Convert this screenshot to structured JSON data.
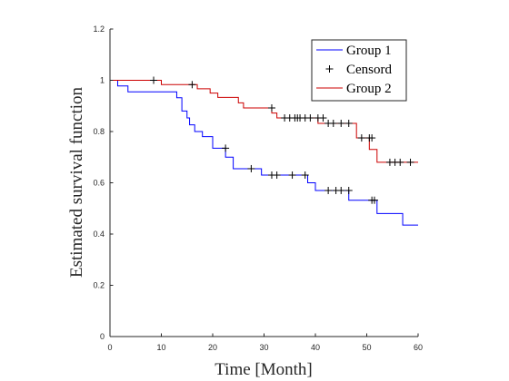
{
  "chart_data": {
    "type": "line",
    "xlabel": "Time [Month]",
    "ylabel": "Estimated survival function",
    "xlim": [
      0,
      60
    ],
    "ylim": [
      0,
      1.2
    ],
    "xticks": [
      0,
      10,
      20,
      30,
      40,
      50,
      60
    ],
    "yticks": [
      0,
      0.2,
      0.4,
      0.6,
      0.8,
      1.0,
      1.2
    ],
    "xtick_labels": [
      "0",
      "10",
      "20",
      "30",
      "40",
      "50",
      "60"
    ],
    "ytick_labels": [
      "0",
      "0.2",
      "0.4",
      "0.6",
      "0.8",
      "1",
      "1.2"
    ],
    "grid": false,
    "legend_position": "top-right",
    "legend": [
      "Group 1",
      "Censord",
      "Group 2"
    ],
    "censor_color": "#000000",
    "series": [
      {
        "name": "Group 1",
        "color": "#0000ff",
        "x": [
          0,
          1.5,
          3.5,
          13,
          14,
          15,
          15.5,
          16.5,
          18,
          20,
          22.5,
          24,
          29.5,
          38.5,
          40,
          46.5,
          52,
          57,
          60
        ],
        "y": [
          1.0,
          0.978,
          0.955,
          0.932,
          0.88,
          0.853,
          0.826,
          0.8,
          0.78,
          0.735,
          0.7,
          0.655,
          0.63,
          0.6,
          0.57,
          0.532,
          0.48,
          0.435,
          0.435
        ],
        "censored": [
          {
            "t": 22.5,
            "s": 0.735
          },
          {
            "t": 27.5,
            "s": 0.655
          },
          {
            "t": 31.5,
            "s": 0.63
          },
          {
            "t": 32.5,
            "s": 0.63
          },
          {
            "t": 35.5,
            "s": 0.63
          },
          {
            "t": 38,
            "s": 0.63
          },
          {
            "t": 42.5,
            "s": 0.57
          },
          {
            "t": 44,
            "s": 0.57
          },
          {
            "t": 45,
            "s": 0.57
          },
          {
            "t": 46.5,
            "s": 0.57
          },
          {
            "t": 51,
            "s": 0.532
          },
          {
            "t": 51.5,
            "s": 0.532
          }
        ]
      },
      {
        "name": "Group 2",
        "color": "#cc0000",
        "x": [
          0,
          10,
          17,
          19.5,
          21,
          25,
          26,
          31.5,
          32.5,
          40.5,
          41.5,
          48,
          50.5,
          52,
          60
        ],
        "y": [
          1.0,
          0.983,
          0.967,
          0.95,
          0.933,
          0.912,
          0.892,
          0.872,
          0.853,
          0.832,
          0.832,
          0.775,
          0.73,
          0.68,
          0.68
        ],
        "censored": [
          {
            "t": 8.5,
            "s": 1.0
          },
          {
            "t": 16,
            "s": 0.983
          },
          {
            "t": 31.5,
            "s": 0.892
          },
          {
            "t": 34,
            "s": 0.853
          },
          {
            "t": 35,
            "s": 0.853
          },
          {
            "t": 36,
            "s": 0.853
          },
          {
            "t": 36.5,
            "s": 0.853
          },
          {
            "t": 37,
            "s": 0.853
          },
          {
            "t": 38,
            "s": 0.853
          },
          {
            "t": 39,
            "s": 0.853
          },
          {
            "t": 40.5,
            "s": 0.853
          },
          {
            "t": 41.5,
            "s": 0.853
          },
          {
            "t": 42.5,
            "s": 0.832
          },
          {
            "t": 43.5,
            "s": 0.832
          },
          {
            "t": 45,
            "s": 0.832
          },
          {
            "t": 46.5,
            "s": 0.832
          },
          {
            "t": 49,
            "s": 0.775
          },
          {
            "t": 50.5,
            "s": 0.775
          },
          {
            "t": 51,
            "s": 0.775
          },
          {
            "t": 54.5,
            "s": 0.68
          },
          {
            "t": 55.5,
            "s": 0.68
          },
          {
            "t": 56.5,
            "s": 0.68
          },
          {
            "t": 58.5,
            "s": 0.68
          }
        ]
      }
    ]
  }
}
